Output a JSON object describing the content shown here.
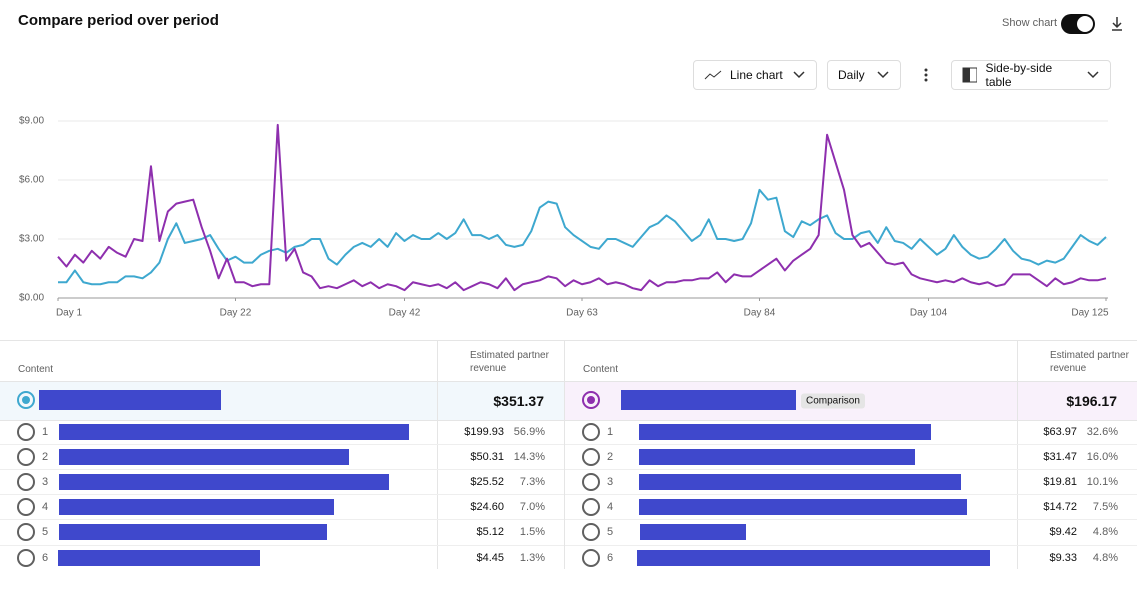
{
  "header": {
    "title": "Compare period over period",
    "toggle_label": "Show chart"
  },
  "controls": {
    "chart_type": "Line chart",
    "interval": "Daily",
    "table_mode": "Side-by-side table"
  },
  "chart_data": {
    "type": "line",
    "x": [
      1,
      2,
      3,
      4,
      5,
      6,
      7,
      8,
      9,
      10,
      11,
      12,
      13,
      14,
      15,
      16,
      17,
      18,
      19,
      20,
      21,
      22,
      23,
      24,
      25,
      26,
      27,
      28,
      29,
      30,
      31,
      32,
      33,
      34,
      35,
      36,
      37,
      38,
      39,
      40,
      41,
      42,
      43,
      44,
      45,
      46,
      47,
      48,
      49,
      50,
      51,
      52,
      53,
      54,
      55,
      56,
      57,
      58,
      59,
      60,
      61,
      62,
      63,
      64,
      65,
      66,
      67,
      68,
      69,
      70,
      71,
      72,
      73,
      74,
      75,
      76,
      77,
      78,
      79,
      80,
      81,
      82,
      83,
      84,
      85,
      86,
      87,
      88,
      89,
      90,
      91,
      92,
      93,
      94,
      95,
      96,
      97,
      98,
      99,
      100,
      101,
      102,
      103,
      104,
      105,
      106,
      107,
      108,
      109,
      110,
      111,
      112,
      113,
      114,
      115,
      116,
      117,
      118,
      119,
      120,
      121,
      122,
      123,
      124,
      125
    ],
    "series": [
      {
        "color": "#3ea8cf",
        "values": [
          0.8,
          0.8,
          1.4,
          0.8,
          0.7,
          0.7,
          0.8,
          0.8,
          1.1,
          1.1,
          1.0,
          1.3,
          1.8,
          3.0,
          3.8,
          2.8,
          2.9,
          3.0,
          3.2,
          2.5,
          1.9,
          2.1,
          1.8,
          1.8,
          2.2,
          2.4,
          2.5,
          2.3,
          2.6,
          2.7,
          3.0,
          3.0,
          2.0,
          1.7,
          2.2,
          2.6,
          2.8,
          2.6,
          3.0,
          2.6,
          3.3,
          2.9,
          3.2,
          3.0,
          3.0,
          3.3,
          3.0,
          3.3,
          4.0,
          3.2,
          3.2,
          3.0,
          3.2,
          2.7,
          2.6,
          2.7,
          3.4,
          4.6,
          4.9,
          4.8,
          3.6,
          3.2,
          2.9,
          2.6,
          2.5,
          3.0,
          3.0,
          2.8,
          2.6,
          3.1,
          3.6,
          3.8,
          4.2,
          3.9,
          3.4,
          2.9,
          3.2,
          4.0,
          3.0,
          3.0,
          2.9,
          3.0,
          3.8,
          5.5,
          5.0,
          5.1,
          3.4,
          3.1,
          3.9,
          3.7,
          4.0,
          4.2,
          3.3,
          3.0,
          3.0,
          3.3,
          3.4,
          2.8,
          3.6,
          2.9,
          2.8,
          2.5,
          3.0,
          2.6,
          2.2,
          2.5,
          3.2,
          2.6,
          2.2,
          2.0,
          2.1,
          2.5,
          3.0,
          2.4,
          2.0,
          1.9,
          1.7,
          1.9,
          1.8,
          2.0,
          2.6,
          3.2,
          2.9,
          2.7,
          3.1
        ]
      },
      {
        "color": "#8e2fae",
        "values": [
          2.1,
          1.6,
          2.2,
          1.8,
          2.4,
          2.0,
          2.6,
          2.3,
          2.1,
          3.0,
          2.9,
          6.7,
          2.9,
          4.4,
          4.8,
          4.9,
          5.0,
          3.6,
          2.4,
          1.0,
          2.0,
          0.8,
          0.8,
          0.6,
          0.7,
          0.7,
          8.8,
          1.9,
          2.5,
          1.3,
          1.1,
          0.5,
          0.6,
          0.5,
          0.7,
          0.9,
          0.6,
          0.8,
          0.5,
          0.7,
          0.6,
          0.4,
          0.8,
          0.7,
          0.6,
          0.7,
          0.5,
          0.8,
          0.4,
          0.6,
          0.8,
          0.7,
          0.5,
          1.0,
          0.4,
          0.7,
          0.8,
          0.9,
          1.1,
          1.0,
          0.6,
          0.9,
          0.7,
          0.8,
          1.0,
          0.7,
          0.8,
          0.7,
          0.5,
          0.4,
          0.9,
          0.6,
          0.8,
          0.8,
          0.9,
          0.9,
          1.0,
          1.0,
          1.3,
          0.8,
          1.2,
          1.1,
          1.1,
          1.4,
          1.7,
          2.0,
          1.4,
          1.9,
          2.2,
          2.5,
          3.2,
          8.3,
          6.9,
          5.5,
          3.2,
          2.6,
          2.8,
          2.3,
          1.8,
          1.7,
          1.8,
          1.2,
          1.0,
          0.9,
          0.8,
          0.9,
          0.8,
          1.0,
          0.8,
          0.7,
          0.8,
          0.6,
          0.7,
          1.2,
          1.2,
          1.2,
          0.9,
          0.6,
          1.0,
          0.7,
          0.8,
          1.0,
          0.9,
          0.9,
          1.0
        ]
      }
    ],
    "xlim": [
      1,
      125
    ],
    "xticks": [
      {
        "value": 1,
        "label": "Day 1"
      },
      {
        "value": 22,
        "label": "Day 22"
      },
      {
        "value": 42,
        "label": "Day 42"
      },
      {
        "value": 63,
        "label": "Day 63"
      },
      {
        "value": 84,
        "label": "Day 84"
      },
      {
        "value": 104,
        "label": "Day 104"
      },
      {
        "value": 125,
        "label": "Day 125"
      }
    ],
    "ylim": [
      0,
      9
    ],
    "yticks": [
      {
        "value": 0,
        "label": "$0.00"
      },
      {
        "value": 3,
        "label": "$3.00"
      },
      {
        "value": 6,
        "label": "$6.00"
      },
      {
        "value": 9,
        "label": "$9.00"
      }
    ],
    "grid": true
  },
  "tables": [
    {
      "content_header": "Content",
      "metric_header": "Estimated partner revenue",
      "total": "$351.37",
      "rows": [
        {
          "rank": "1",
          "revenue": "$199.93",
          "share": "56.9%"
        },
        {
          "rank": "2",
          "revenue": "$50.31",
          "share": "14.3%"
        },
        {
          "rank": "3",
          "revenue": "$25.52",
          "share": "7.3%"
        },
        {
          "rank": "4",
          "revenue": "$24.60",
          "share": "7.0%"
        },
        {
          "rank": "5",
          "revenue": "$5.12",
          "share": "1.5%"
        },
        {
          "rank": "6",
          "revenue": "$4.45",
          "share": "1.3%"
        }
      ]
    },
    {
      "content_header": "Content",
      "metric_header": "Estimated partner revenue",
      "total": "$196.17",
      "badge": "Comparison",
      "rows": [
        {
          "rank": "1",
          "revenue": "$63.97",
          "share": "32.6%"
        },
        {
          "rank": "2",
          "revenue": "$31.47",
          "share": "16.0%"
        },
        {
          "rank": "3",
          "revenue": "$19.81",
          "share": "10.1%"
        },
        {
          "rank": "4",
          "revenue": "$14.72",
          "share": "7.5%"
        },
        {
          "rank": "5",
          "revenue": "$9.42",
          "share": "4.8%"
        },
        {
          "rank": "6",
          "revenue": "$9.33",
          "share": "4.8%"
        }
      ]
    }
  ]
}
